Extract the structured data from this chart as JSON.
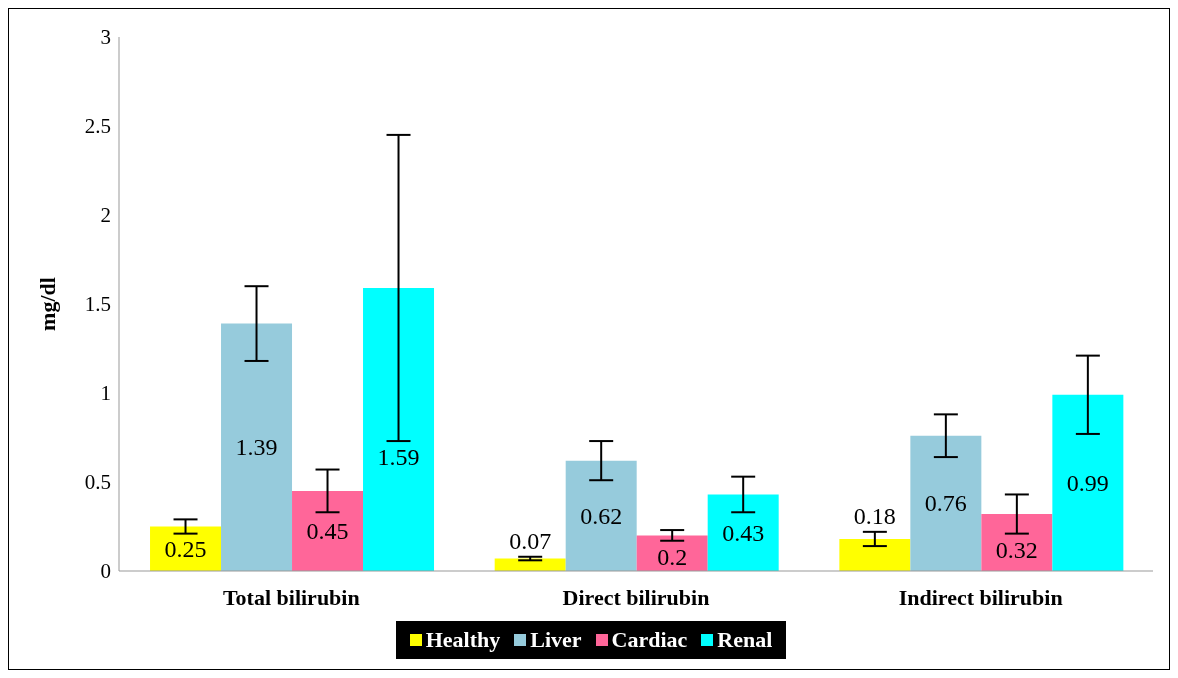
{
  "chart_data": {
    "type": "bar",
    "ylabel": "mg/dl",
    "categories": [
      "Total bilirubin",
      "Direct bilirubin",
      "Indirect bilirubin"
    ],
    "series": [
      {
        "name": "Healthy",
        "color": "#ffff00",
        "values": [
          0.25,
          0.07,
          0.18
        ],
        "errors": [
          0.04,
          0.01,
          0.04
        ]
      },
      {
        "name": "Liver",
        "color": "#96cbdc",
        "values": [
          1.39,
          0.62,
          0.76
        ],
        "errors": [
          0.21,
          0.11,
          0.12
        ]
      },
      {
        "name": "Cardiac",
        "color": "#ff6699",
        "values": [
          0.45,
          0.2,
          0.32
        ],
        "errors": [
          0.12,
          0.03,
          0.11
        ]
      },
      {
        "name": "Renal",
        "color": "#00ffff",
        "values": [
          1.59,
          0.43,
          0.99
        ],
        "errors": [
          0.86,
          0.1,
          0.22
        ]
      }
    ],
    "ylim": [
      0,
      3
    ],
    "yticks": [
      0,
      0.5,
      1,
      1.5,
      2,
      2.5,
      3
    ],
    "grid": false,
    "legend": "bottom",
    "data_labels": true
  }
}
